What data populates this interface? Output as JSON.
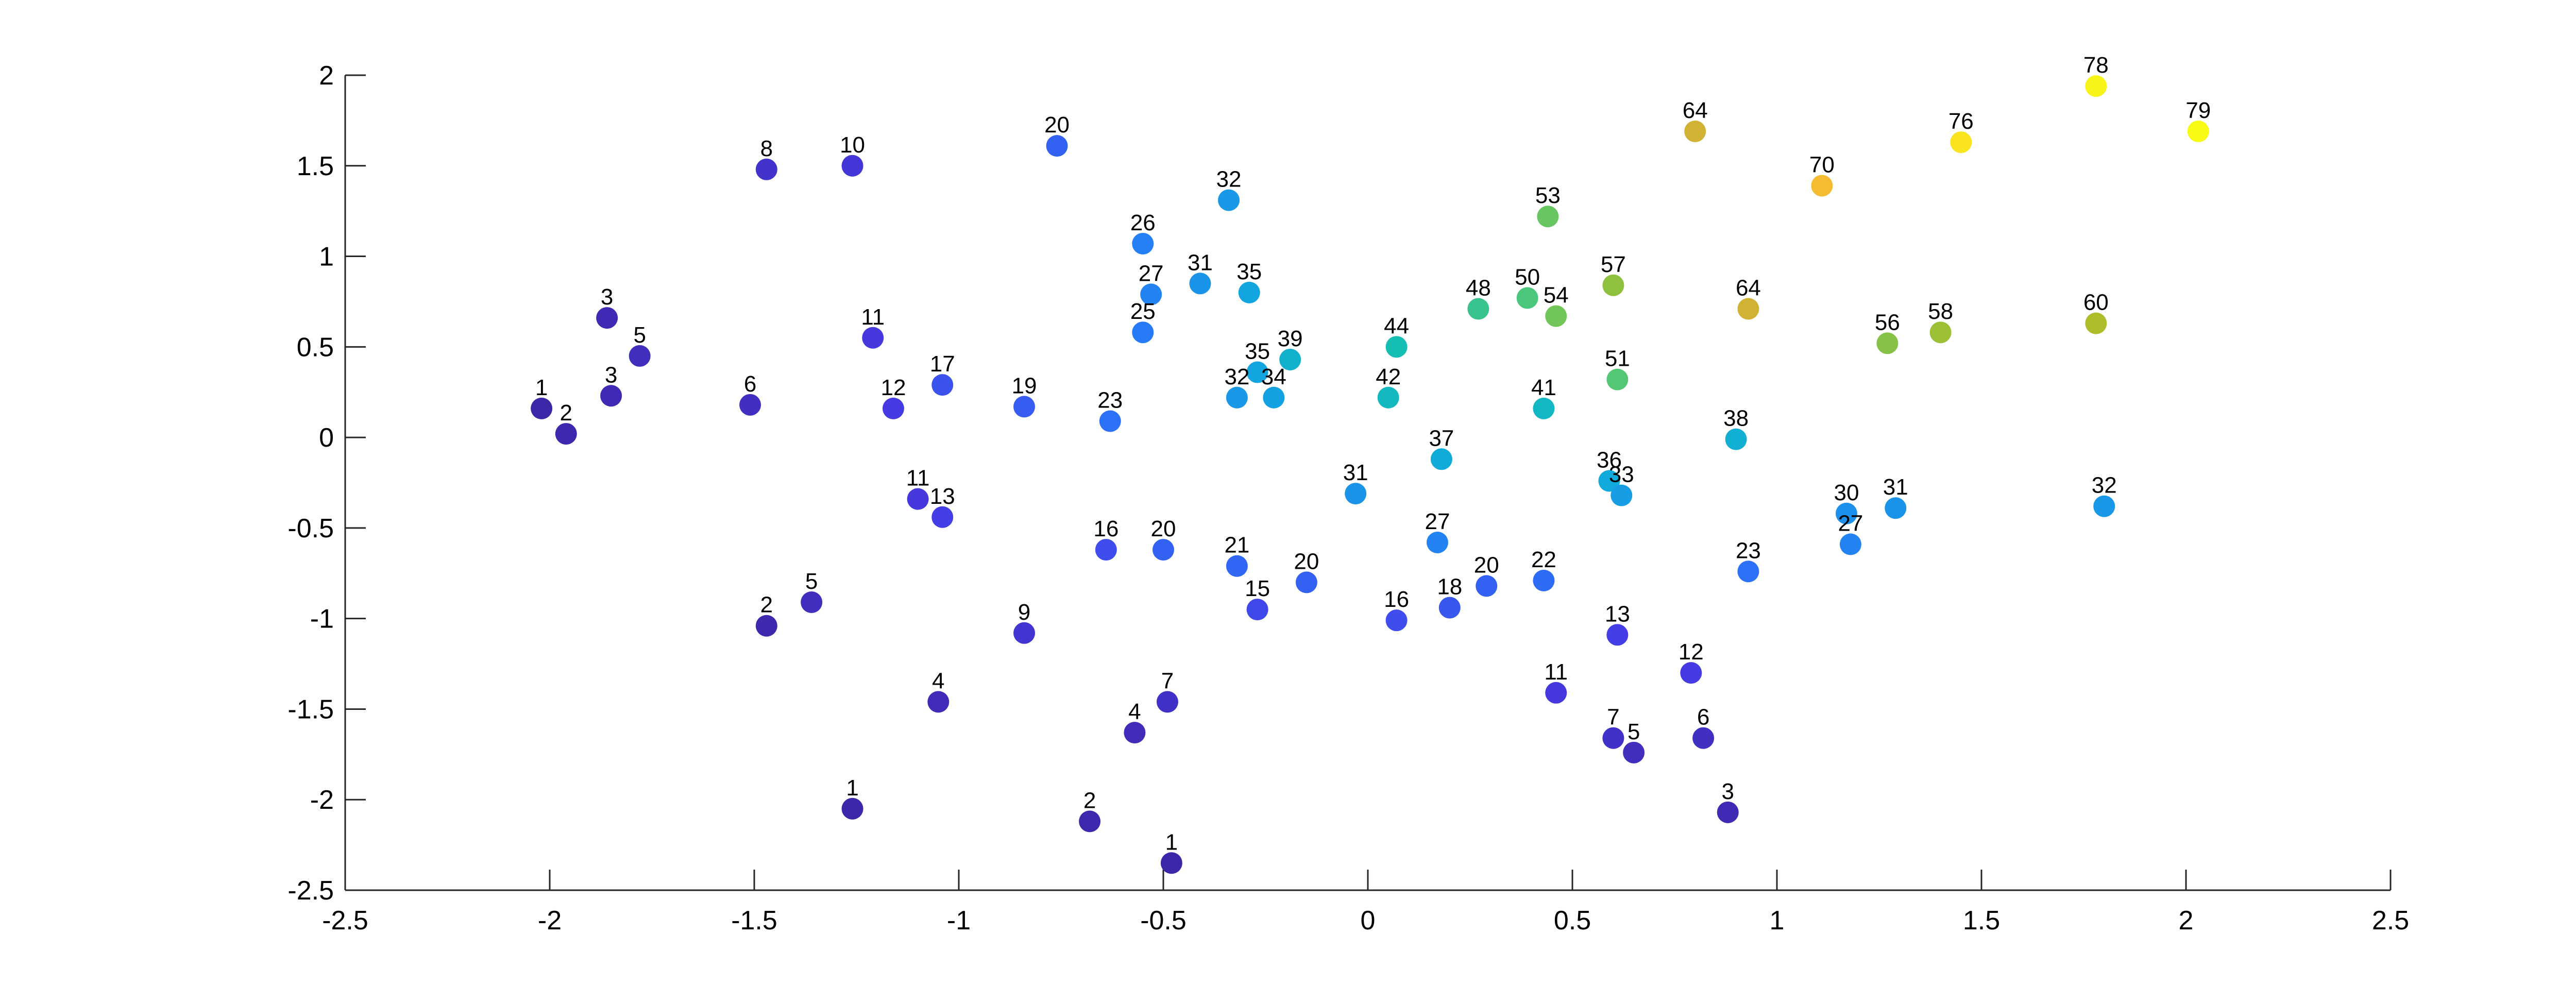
{
  "chart_data": {
    "type": "scatter",
    "title": "",
    "xlabel": "",
    "ylabel": "",
    "xlim": [
      -2.5,
      2.5
    ],
    "ylim": [
      -2.5,
      2
    ],
    "xticks": [
      -2.5,
      -2,
      -1.5,
      -1,
      -0.5,
      0,
      0.5,
      1,
      1.5,
      2,
      2.5
    ],
    "yticks": [
      -2.5,
      -2,
      -1.5,
      -1,
      -0.5,
      0,
      0.5,
      1,
      1.5,
      2
    ],
    "xtick_labels": [
      "-2.5",
      "-2",
      "-1.5",
      "-1",
      "-0.5",
      "0",
      "0.5",
      "1",
      "1.5",
      "2",
      "2.5"
    ],
    "ytick_labels": [
      "-2.5",
      "-2",
      "-1.5",
      "-1",
      "-0.5",
      "0",
      "0.5",
      "1",
      "1.5",
      "2"
    ],
    "grid": false,
    "legend": "none",
    "colormap": "parula",
    "color_range": [
      1,
      79
    ],
    "points": [
      {
        "x": -2.02,
        "y": 0.16,
        "label": "1"
      },
      {
        "x": -1.96,
        "y": 0.02,
        "label": "2"
      },
      {
        "x": -1.86,
        "y": 0.66,
        "label": "3"
      },
      {
        "x": -1.85,
        "y": 0.23,
        "label": "3"
      },
      {
        "x": -1.78,
        "y": 0.45,
        "label": "5"
      },
      {
        "x": -1.51,
        "y": 0.18,
        "label": "6"
      },
      {
        "x": -1.47,
        "y": 1.48,
        "label": "8"
      },
      {
        "x": -1.26,
        "y": 1.5,
        "label": "10"
      },
      {
        "x": -1.21,
        "y": 0.55,
        "label": "11"
      },
      {
        "x": -1.16,
        "y": 0.16,
        "label": "12"
      },
      {
        "x": -1.04,
        "y": 0.29,
        "label": "17"
      },
      {
        "x": -0.84,
        "y": 0.17,
        "label": "19"
      },
      {
        "x": -0.63,
        "y": 0.09,
        "label": "23"
      },
      {
        "x": -0.76,
        "y": 1.61,
        "label": "20"
      },
      {
        "x": -0.55,
        "y": 1.07,
        "label": "26"
      },
      {
        "x": -0.53,
        "y": 0.79,
        "label": "27"
      },
      {
        "x": -0.55,
        "y": 0.58,
        "label": "25"
      },
      {
        "x": -0.41,
        "y": 0.85,
        "label": "31"
      },
      {
        "x": -0.34,
        "y": 1.31,
        "label": "32"
      },
      {
        "x": -0.29,
        "y": 0.8,
        "label": "35"
      },
      {
        "x": -0.32,
        "y": 0.22,
        "label": "32"
      },
      {
        "x": -0.27,
        "y": 0.36,
        "label": "35"
      },
      {
        "x": -0.23,
        "y": 0.22,
        "label": "34"
      },
      {
        "x": -0.19,
        "y": 0.43,
        "label": "39"
      },
      {
        "x": 0.07,
        "y": 0.5,
        "label": "44"
      },
      {
        "x": 0.05,
        "y": 0.22,
        "label": "42"
      },
      {
        "x": 0.18,
        "y": -0.12,
        "label": "37"
      },
      {
        "x": -0.03,
        "y": -0.31,
        "label": "31"
      },
      {
        "x": 0.27,
        "y": 0.71,
        "label": "48"
      },
      {
        "x": 0.39,
        "y": 0.77,
        "label": "50"
      },
      {
        "x": 0.44,
        "y": 1.22,
        "label": "53"
      },
      {
        "x": 0.46,
        "y": 0.67,
        "label": "54"
      },
      {
        "x": 0.6,
        "y": 0.84,
        "label": "57"
      },
      {
        "x": 0.43,
        "y": 0.16,
        "label": "41"
      },
      {
        "x": 0.61,
        "y": 0.32,
        "label": "51"
      },
      {
        "x": 0.59,
        "y": -0.24,
        "label": "36"
      },
      {
        "x": 0.62,
        "y": -0.32,
        "label": "33"
      },
      {
        "x": 0.8,
        "y": 1.69,
        "label": "64"
      },
      {
        "x": 0.93,
        "y": 0.71,
        "label": "64"
      },
      {
        "x": 0.9,
        "y": -0.01,
        "label": "38"
      },
      {
        "x": 1.11,
        "y": 1.39,
        "label": "70"
      },
      {
        "x": 1.45,
        "y": 1.63,
        "label": "76"
      },
      {
        "x": 1.78,
        "y": 1.94,
        "label": "78"
      },
      {
        "x": 2.03,
        "y": 1.69,
        "label": "79"
      },
      {
        "x": 1.27,
        "y": 0.52,
        "label": "56"
      },
      {
        "x": 1.4,
        "y": 0.58,
        "label": "58"
      },
      {
        "x": 1.78,
        "y": 0.63,
        "label": "60"
      },
      {
        "x": 1.17,
        "y": -0.42,
        "label": "30"
      },
      {
        "x": 1.29,
        "y": -0.39,
        "label": "31"
      },
      {
        "x": 1.8,
        "y": -0.38,
        "label": "32"
      },
      {
        "x": 1.18,
        "y": -0.59,
        "label": "27"
      },
      {
        "x": 0.93,
        "y": -0.74,
        "label": "23"
      },
      {
        "x": 0.43,
        "y": -0.79,
        "label": "22"
      },
      {
        "x": 0.29,
        "y": -0.82,
        "label": "20"
      },
      {
        "x": 0.2,
        "y": -0.94,
        "label": "18"
      },
      {
        "x": 0.07,
        "y": -1.01,
        "label": "16"
      },
      {
        "x": 0.17,
        "y": -0.58,
        "label": "27"
      },
      {
        "x": -0.15,
        "y": -0.8,
        "label": "20"
      },
      {
        "x": -0.32,
        "y": -0.71,
        "label": "21"
      },
      {
        "x": -0.27,
        "y": -0.95,
        "label": "15"
      },
      {
        "x": -0.5,
        "y": -0.62,
        "label": "20"
      },
      {
        "x": -0.64,
        "y": -0.62,
        "label": "16"
      },
      {
        "x": -1.1,
        "y": -0.34,
        "label": "11"
      },
      {
        "x": -1.04,
        "y": -0.44,
        "label": "13"
      },
      {
        "x": -0.84,
        "y": -1.08,
        "label": "9"
      },
      {
        "x": -1.36,
        "y": -0.91,
        "label": "5"
      },
      {
        "x": -1.47,
        "y": -1.04,
        "label": "2"
      },
      {
        "x": -1.05,
        "y": -1.46,
        "label": "4"
      },
      {
        "x": -0.57,
        "y": -1.63,
        "label": "4"
      },
      {
        "x": -0.49,
        "y": -1.46,
        "label": "7"
      },
      {
        "x": -1.26,
        "y": -2.05,
        "label": "1"
      },
      {
        "x": -0.68,
        "y": -2.12,
        "label": "2"
      },
      {
        "x": -0.48,
        "y": -2.35,
        "label": "1"
      },
      {
        "x": 0.61,
        "y": -1.09,
        "label": "13"
      },
      {
        "x": 0.46,
        "y": -1.41,
        "label": "11"
      },
      {
        "x": 0.79,
        "y": -1.3,
        "label": "12"
      },
      {
        "x": 0.6,
        "y": -1.66,
        "label": "7"
      },
      {
        "x": 0.65,
        "y": -1.74,
        "label": "5"
      },
      {
        "x": 0.82,
        "y": -1.66,
        "label": "6"
      },
      {
        "x": 0.88,
        "y": -2.07,
        "label": "3"
      }
    ]
  }
}
